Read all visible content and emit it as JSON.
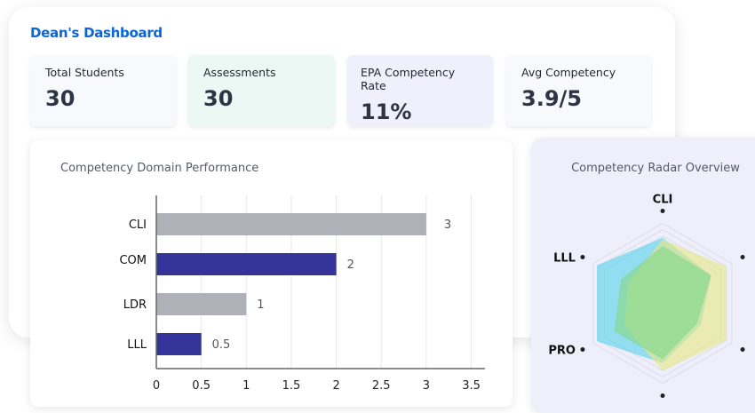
{
  "header": {
    "title": "Dean's Dashboard"
  },
  "stats": [
    {
      "label": "Total Students",
      "value": "30",
      "bg": "#f8f9fc"
    },
    {
      "label": "Assessments",
      "value": "30",
      "bg": "#ebf8f3"
    },
    {
      "label": "EPA Competency Rate",
      "value": "11%",
      "bg": "#f0f0fc"
    },
    {
      "label": "Avg Competency",
      "value": "3.9/5",
      "bg": "#f8f9fc"
    }
  ],
  "chart_data": [
    {
      "type": "bar",
      "orientation": "horizontal",
      "title": "Competency Domain Performance",
      "categories": [
        "CLI",
        "COM",
        "LDR",
        "LLL"
      ],
      "values": [
        3,
        2,
        1,
        0.5
      ],
      "data_labels": [
        "3",
        "2",
        "1",
        "0.5"
      ],
      "colors": [
        "#b0b1b8",
        "#333399",
        "#b0b1b8",
        "#333399"
      ],
      "xlim": [
        0,
        3.5
      ],
      "xticks": [
        "0",
        "0.5",
        "1",
        "1.5",
        "2",
        "2.5",
        "3",
        "3.5"
      ],
      "grid": true
    },
    {
      "type": "radar",
      "title": "Competency Radar Overview",
      "axes": [
        "CLI",
        "",
        "",
        "",
        "PRO",
        "LLL"
      ],
      "rmax": 1,
      "series": [
        {
          "values": [
            0.82,
            0.7,
            0.55,
            0.75,
            0.95,
            0.95
          ],
          "color": "#5fd3ea"
        },
        {
          "values": [
            0.8,
            0.92,
            0.92,
            0.85,
            0.55,
            0.5
          ],
          "color": "#e6e88a"
        },
        {
          "values": [
            0.72,
            0.7,
            0.5,
            0.7,
            0.7,
            0.6
          ],
          "color": "#86d98a"
        }
      ]
    }
  ]
}
